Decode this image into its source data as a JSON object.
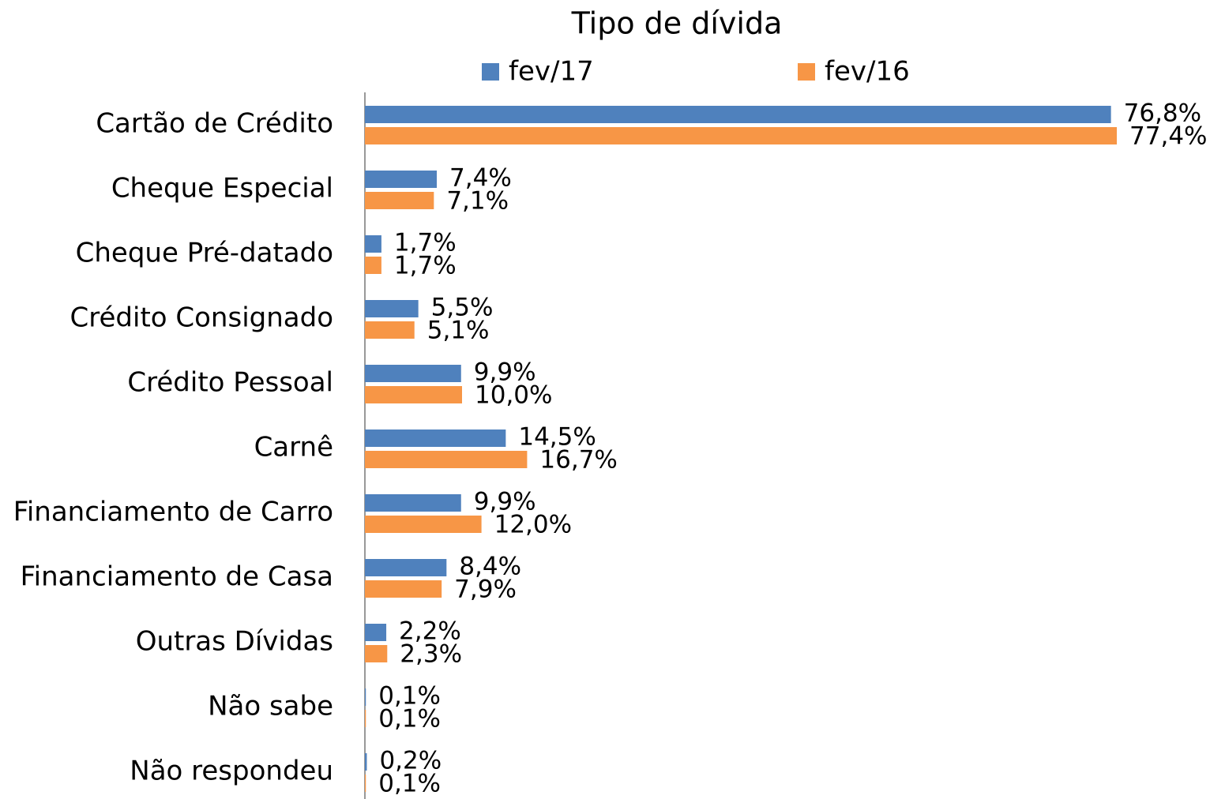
{
  "chart_data": {
    "type": "hbar",
    "title": "Tipo de dívida",
    "categories": [
      "Cartão de Crédito",
      "Cheque Especial",
      "Cheque Pré-datado",
      "Crédito Consignado",
      "Crédito Pessoal",
      "Carnê",
      "Financiamento de Carro",
      "Financiamento de Casa",
      "Outras Dívidas",
      "Não sabe",
      "Não respondeu"
    ],
    "series": [
      {
        "name": "fev/17",
        "color": "#4f81bd",
        "values": [
          76.8,
          7.4,
          1.7,
          5.5,
          9.9,
          14.5,
          9.9,
          8.4,
          2.2,
          0.1,
          0.2
        ],
        "value_labels": [
          "76,8%",
          "7,4%",
          "1,7%",
          "5,5%",
          "9,9%",
          "14,5%",
          "9,9%",
          "8,4%",
          "2,2%",
          "0,1%",
          "0,2%"
        ]
      },
      {
        "name": "fev/16",
        "color": "#f79646",
        "values": [
          77.4,
          7.1,
          1.7,
          5.1,
          10.0,
          16.7,
          12.0,
          7.9,
          2.3,
          0.1,
          0.1
        ],
        "value_labels": [
          "77,4%",
          "7,1%",
          "1,7%",
          "5,1%",
          "10,0%",
          "16,7%",
          "12,0%",
          "7,9%",
          "2,3%",
          "0,1%",
          "0,1%"
        ]
      }
    ],
    "xlim": [
      0,
      80
    ],
    "legend": "top"
  }
}
